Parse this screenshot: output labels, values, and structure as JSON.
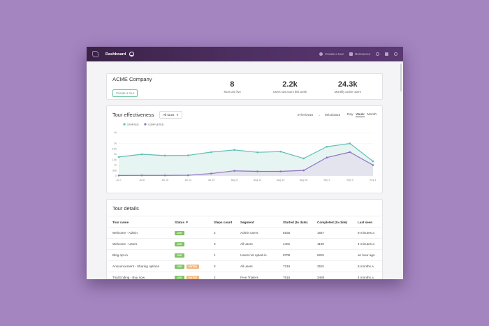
{
  "topbar": {
    "title": "Dashboard",
    "create_tour": "Create a tour",
    "resources": "Resources"
  },
  "company": {
    "name": "ACME Company",
    "create_button": "Create a tour",
    "stats": [
      {
        "value": "8",
        "label": "Tours are live"
      },
      {
        "value": "2.2k",
        "label": "Users saw tours this week"
      },
      {
        "value": "24.3k",
        "label": "Monthly active users"
      }
    ]
  },
  "effectiveness": {
    "title": "Tour effectiveness",
    "dropdown": "All tours",
    "date_from": "07/07/2018",
    "date_to": "09/15/2018",
    "periods": [
      "Day",
      "Week",
      "Month"
    ],
    "active_period": "Week"
  },
  "chart_data": {
    "type": "area",
    "categories": [
      "Jul 7",
      "Jul 8",
      "Jul 15",
      "Jul 22",
      "Jul 29",
      "Aug 5",
      "Aug 12",
      "Aug 19",
      "Aug 26",
      "Sep 2",
      "Sep 9",
      "Sep 1"
    ],
    "y_ticks": [
      "0",
      "500",
      "1k",
      "1.5k",
      "2k",
      "2.5k",
      "3k",
      "4k"
    ],
    "ylim": [
      0,
      4000
    ],
    "legend_position": "top-left",
    "series": [
      {
        "name": "STARTED",
        "color": "#5dbfb4",
        "values": [
          1750,
          2000,
          1880,
          1900,
          2200,
          2400,
          2180,
          2250,
          1620,
          2700,
          3000,
          1350
        ]
      },
      {
        "name": "COMPLETED",
        "color": "#9270c0",
        "values": [
          40,
          50,
          50,
          60,
          220,
          470,
          420,
          420,
          510,
          1700,
          2200,
          1000
        ]
      }
    ]
  },
  "details": {
    "title": "Tour details",
    "columns": [
      "Tour name",
      "Status ▼",
      "Steps count",
      "Segment",
      "Started (to date)",
      "Completed (to date)",
      "Last seen"
    ],
    "rows": [
      {
        "name": "Welcome - Admin",
        "badges": [
          "LIVE"
        ],
        "steps": "2",
        "segment": "Admin users",
        "started": "8165",
        "completed": "1847",
        "last_seen": "9 minutes a"
      },
      {
        "name": "Welcome - Users",
        "badges": [
          "LIVE"
        ],
        "steps": "3",
        "segment": "All users",
        "started": "4401",
        "completed": "1100",
        "last_seen": "4 minutes a"
      },
      {
        "name": "Blog opt-in",
        "badges": [
          "LIVE"
        ],
        "steps": "1",
        "segment": "Users not opted-in",
        "started": "8709",
        "completed": "6281",
        "last_seen": "an hour ago"
      },
      {
        "name": "Announcement - Sharing options",
        "badges": [
          "LIVE",
          "EDITED"
        ],
        "steps": "3",
        "segment": "All users",
        "started": "7216",
        "completed": "2531",
        "last_seen": "6 months a"
      },
      {
        "name": "Trial Ending - Buy now",
        "badges": [
          "LIVE",
          "EDITED"
        ],
        "steps": "2",
        "segment": "Free Trialers",
        "started": "7616",
        "completed": "3485",
        "last_seen": "4 months a"
      }
    ]
  }
}
